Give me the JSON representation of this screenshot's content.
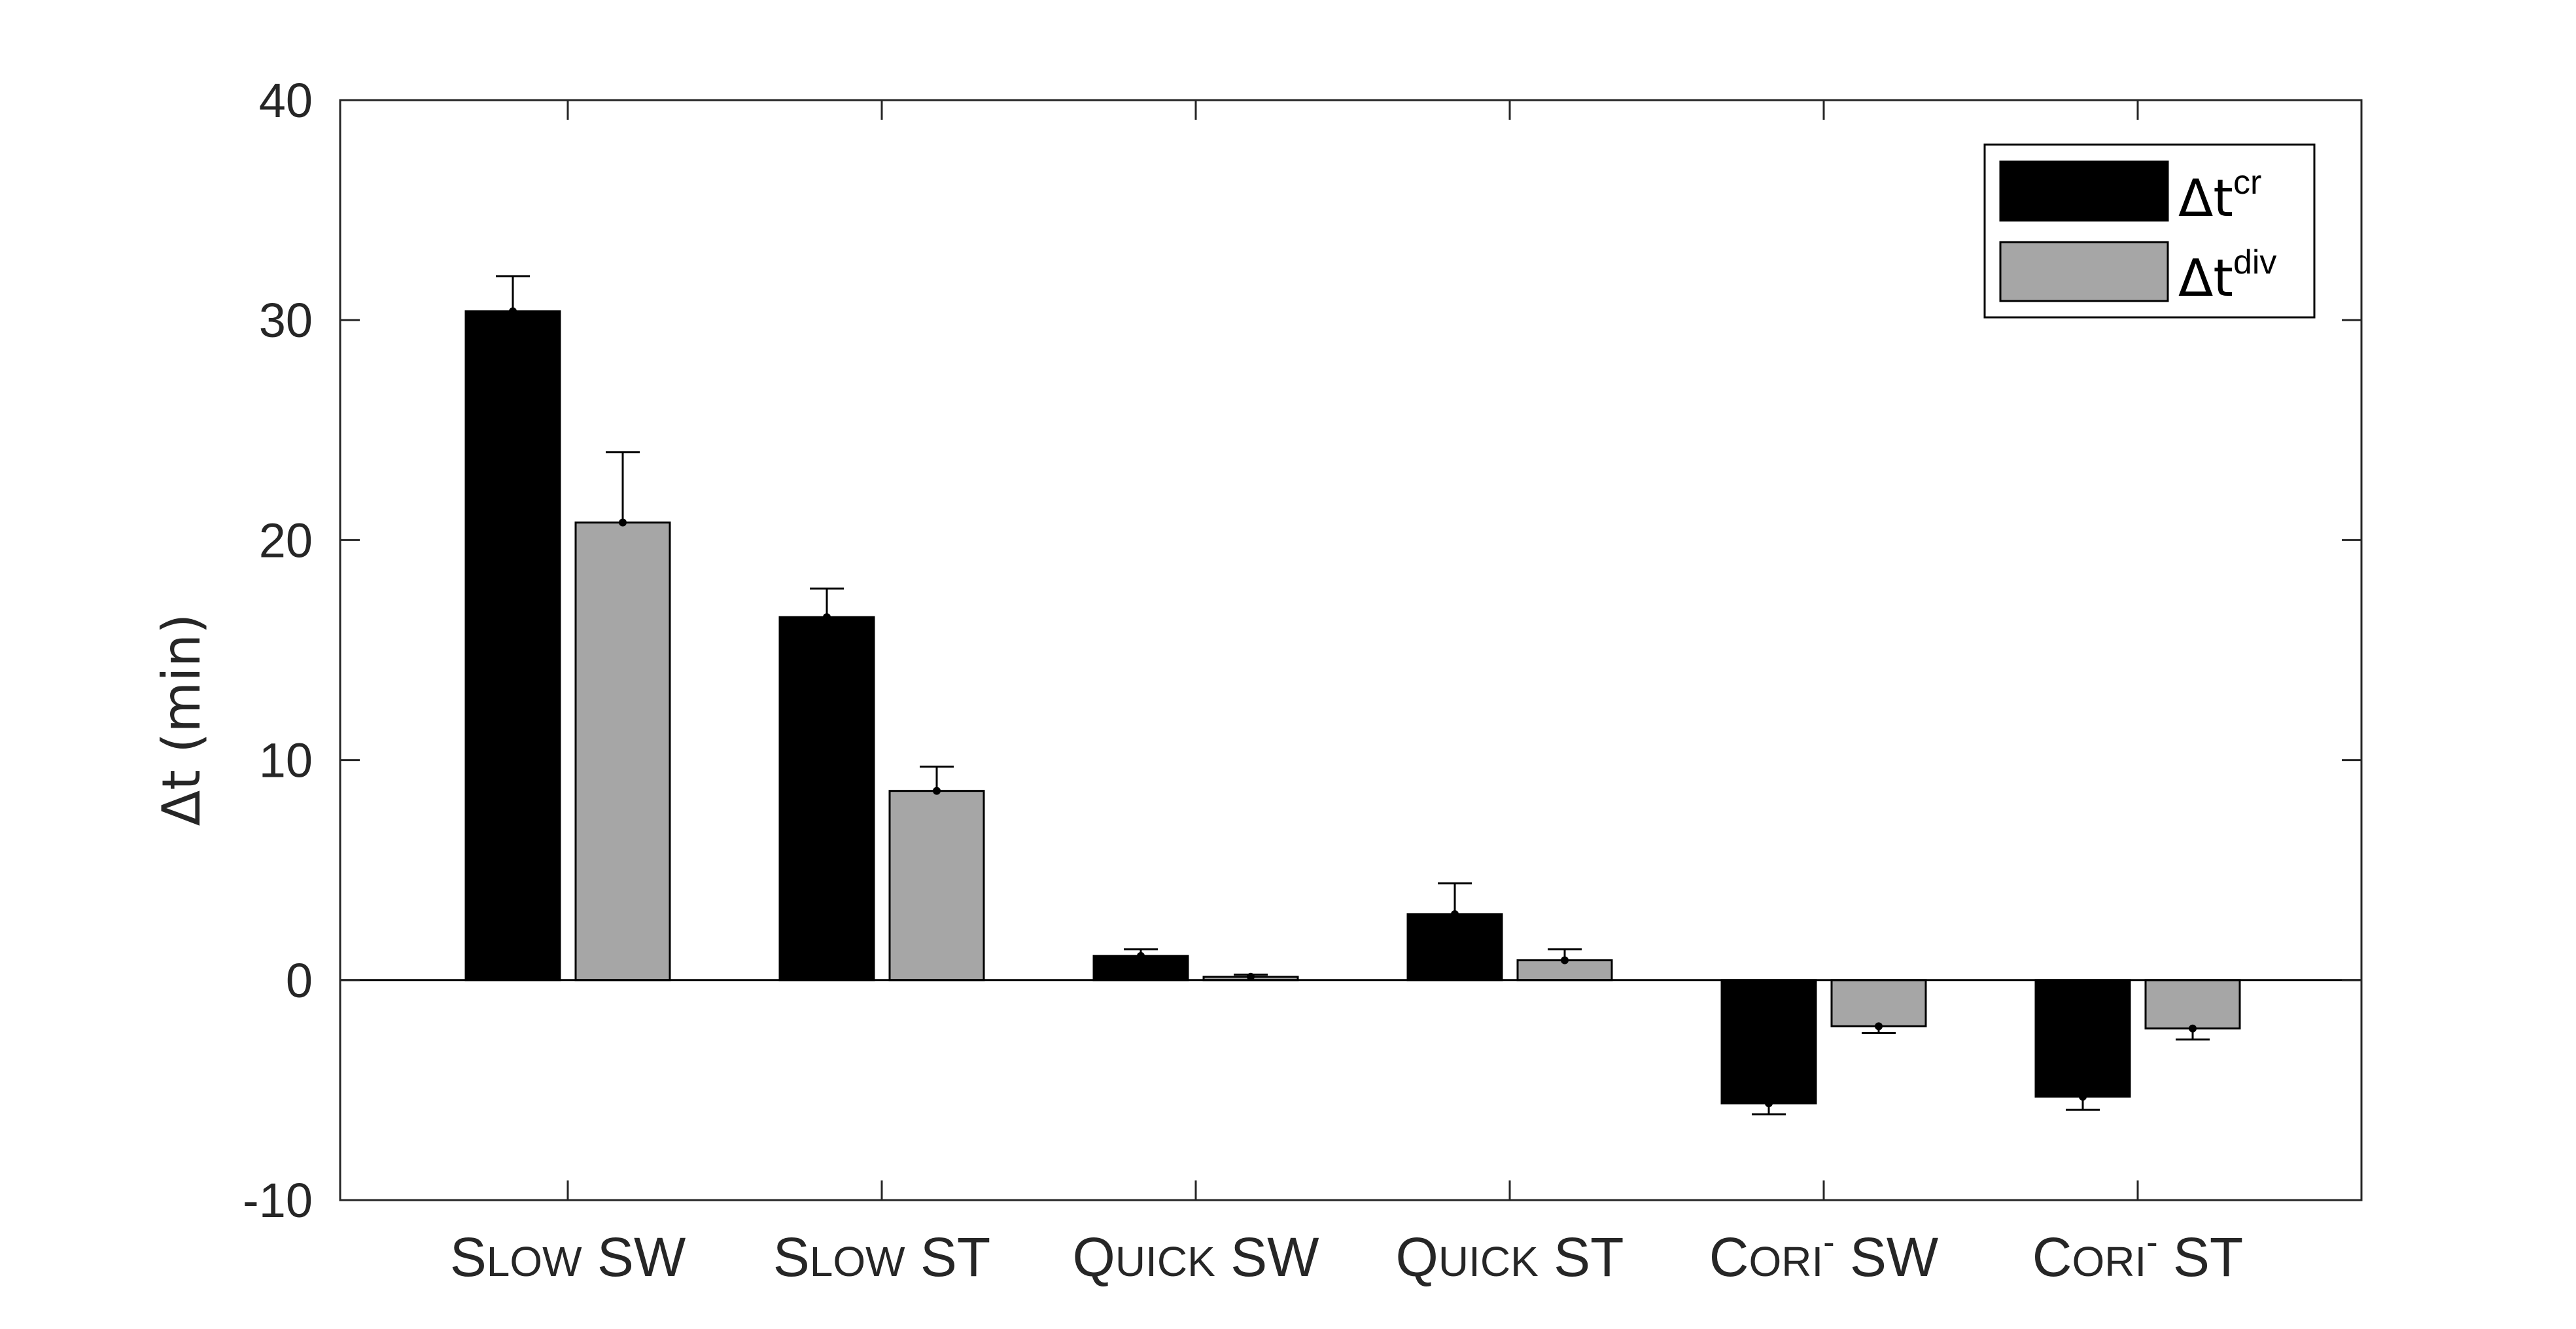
{
  "chart_data": {
    "type": "bar",
    "categories": [
      {
        "label": "Slow SW",
        "lead": "S",
        "rest": "LOW",
        "tail": " SW",
        "sup": ""
      },
      {
        "label": "Slow ST",
        "lead": "S",
        "rest": "LOW",
        "tail": " ST",
        "sup": ""
      },
      {
        "label": "Quick SW",
        "lead": "Q",
        "rest": "UICK",
        "tail": " SW",
        "sup": ""
      },
      {
        "label": "Quick ST",
        "lead": "Q",
        "rest": "UICK",
        "tail": " ST",
        "sup": ""
      },
      {
        "label": "CoriR- SW",
        "lead": "C",
        "rest": "ORI",
        "tail": " SW",
        "sup": "-"
      },
      {
        "label": "CoriR- ST",
        "lead": "C",
        "rest": "ORI",
        "tail": " ST",
        "sup": "-"
      }
    ],
    "series": [
      {
        "name": "Δt",
        "name_sup": "cr",
        "color": "#000000",
        "values": [
          30.4,
          16.5,
          1.1,
          3.0,
          -5.6,
          -5.3
        ],
        "errors": [
          1.6,
          1.3,
          0.3,
          1.4,
          0.5,
          0.6
        ]
      },
      {
        "name": "Δt",
        "name_sup": "div",
        "color": "#a6a6a6",
        "values": [
          20.8,
          8.6,
          0.15,
          0.9,
          -2.1,
          -2.2
        ],
        "errors": [
          3.2,
          1.1,
          0.1,
          0.5,
          0.3,
          0.5
        ]
      }
    ],
    "ylabel": "Δt (min)",
    "xlabel": "",
    "ylim": [
      -10,
      40
    ],
    "yticks": [
      "-10",
      "0",
      "10",
      "20",
      "30",
      "40"
    ],
    "ytick_values": [
      -10,
      0,
      10,
      20,
      30,
      40
    ],
    "legend_position": "top-right",
    "grid": false
  }
}
